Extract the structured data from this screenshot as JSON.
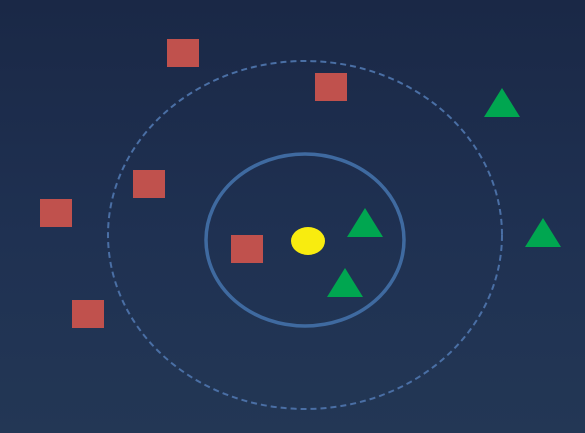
{
  "diagram": {
    "type": "knn-classification-illustration",
    "colors": {
      "query": "#f8ec0f",
      "square": "#c0514d",
      "triangle": "#00a650",
      "circle_solid": "#3f6aa0",
      "circle_dashed": "#4a6fa5"
    },
    "shapes": {
      "query": {
        "kind": "query-point",
        "icon": "circle"
      },
      "squares": {
        "count": 6,
        "icon": "square"
      },
      "triangles": {
        "count": 4,
        "icon": "triangle"
      }
    },
    "neighborhoods": [
      {
        "name": "inner",
        "style": "solid"
      },
      {
        "name": "outer",
        "style": "dashed"
      }
    ]
  }
}
